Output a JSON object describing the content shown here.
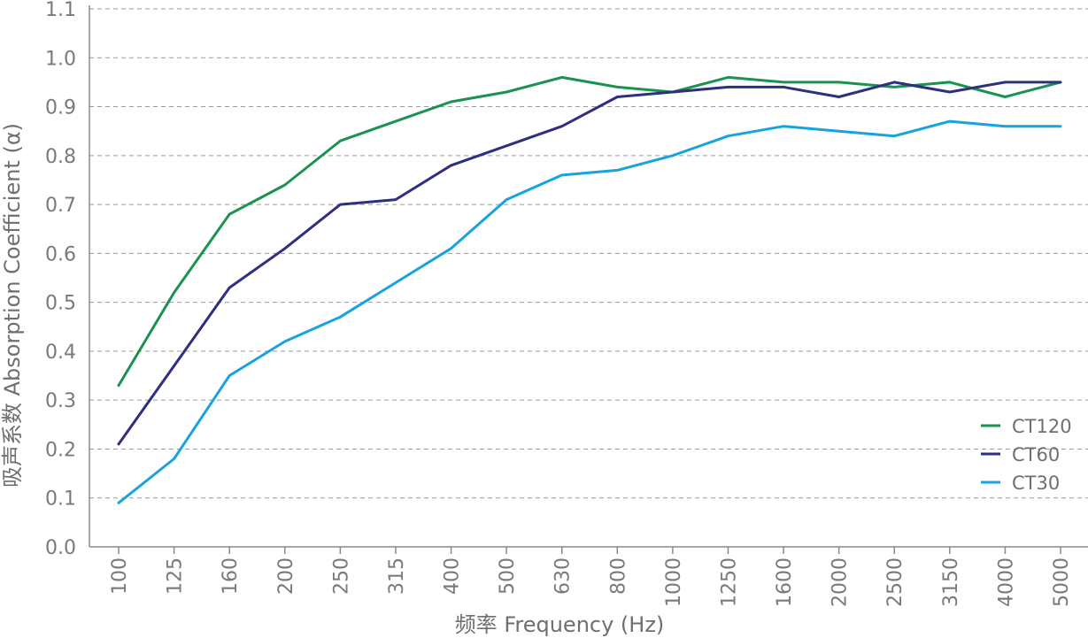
{
  "chart_data": {
    "type": "line",
    "title": "",
    "xlabel": "频率 Frequency (Hz)",
    "ylabel": "吸声系数 Absorption Coefficient (α)",
    "categories": [
      "100",
      "125",
      "160",
      "200",
      "250",
      "315",
      "400",
      "500",
      "630",
      "800",
      "1000",
      "1250",
      "1600",
      "2000",
      "2500",
      "3150",
      "4000",
      "5000"
    ],
    "y_ticks": [
      "0.0",
      "0.1",
      "0.2",
      "0.3",
      "0.4",
      "0.5",
      "0.6",
      "0.7",
      "0.8",
      "0.9",
      "1.0",
      "1.1"
    ],
    "ylim": [
      0,
      1.1
    ],
    "grid": "horizontal dashed",
    "legend_position": "lower-right",
    "series": [
      {
        "name": "CT120",
        "color": "#1a9350",
        "values": [
          0.33,
          0.52,
          0.68,
          0.74,
          0.83,
          0.87,
          0.91,
          0.93,
          0.96,
          0.94,
          0.93,
          0.96,
          0.95,
          0.95,
          0.94,
          0.95,
          0.92,
          0.95
        ]
      },
      {
        "name": "CT60",
        "color": "#2e2f7f",
        "values": [
          0.21,
          0.37,
          0.53,
          0.61,
          0.7,
          0.71,
          0.78,
          0.82,
          0.86,
          0.92,
          0.93,
          0.94,
          0.94,
          0.92,
          0.95,
          0.93,
          0.95,
          0.95
        ]
      },
      {
        "name": "CT30",
        "color": "#17a3e0",
        "values": [
          0.09,
          0.18,
          0.35,
          0.42,
          0.47,
          0.54,
          0.61,
          0.71,
          0.76,
          0.77,
          0.8,
          0.84,
          0.86,
          0.85,
          0.84,
          0.87,
          0.86,
          0.86
        ]
      }
    ]
  }
}
